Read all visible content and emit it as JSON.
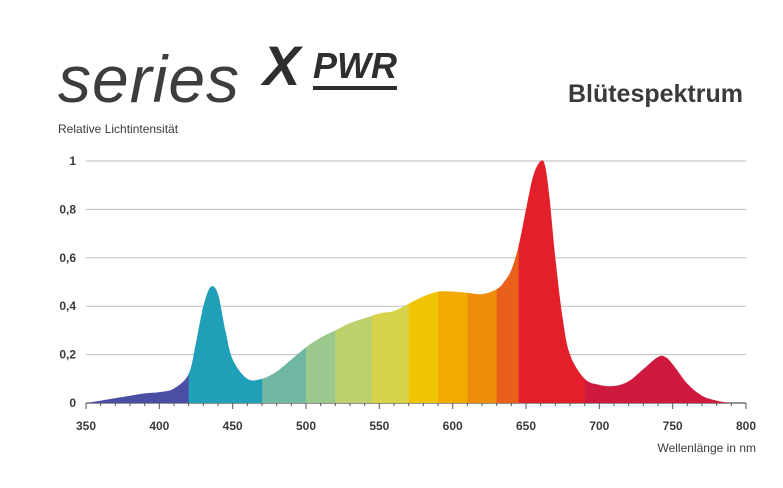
{
  "brand": {
    "series": "series",
    "x": "X",
    "pwr": "PWR"
  },
  "chart_data": {
    "type": "area",
    "title": "Blütespektrum",
    "xlabel": "Wellenlänge in nm",
    "ylabel": "Relative Lichtintensität",
    "xlim": [
      350,
      800
    ],
    "ylim": [
      0,
      1
    ],
    "grid": true,
    "x_ticks": [
      "350",
      "400",
      "450",
      "500",
      "550",
      "600",
      "650",
      "700",
      "750",
      "800"
    ],
    "y_ticks": [
      "0",
      "0,2",
      "0,4",
      "0,6",
      "0,8",
      "1"
    ],
    "x": [
      350,
      360,
      370,
      380,
      390,
      400,
      410,
      420,
      425,
      430,
      435,
      440,
      445,
      450,
      460,
      470,
      480,
      490,
      500,
      510,
      520,
      530,
      540,
      550,
      560,
      570,
      580,
      590,
      600,
      610,
      620,
      630,
      635,
      640,
      645,
      650,
      655,
      660,
      663,
      666,
      670,
      675,
      680,
      690,
      700,
      710,
      720,
      730,
      740,
      745,
      750,
      760,
      770,
      780,
      790,
      800
    ],
    "y": [
      0.0,
      0.01,
      0.02,
      0.03,
      0.04,
      0.045,
      0.06,
      0.12,
      0.25,
      0.4,
      0.48,
      0.45,
      0.3,
      0.18,
      0.1,
      0.1,
      0.13,
      0.18,
      0.23,
      0.27,
      0.3,
      0.33,
      0.35,
      0.37,
      0.38,
      0.41,
      0.44,
      0.46,
      0.46,
      0.455,
      0.45,
      0.47,
      0.5,
      0.55,
      0.65,
      0.8,
      0.94,
      1.0,
      0.98,
      0.85,
      0.6,
      0.35,
      0.2,
      0.1,
      0.075,
      0.07,
      0.09,
      0.14,
      0.19,
      0.19,
      0.16,
      0.08,
      0.03,
      0.01,
      0.0,
      0.0
    ],
    "color_bands": [
      {
        "from": 350,
        "to": 420,
        "color": "#4a4fa3"
      },
      {
        "from": 420,
        "to": 470,
        "color": "#1f9fb8"
      },
      {
        "from": 470,
        "to": 500,
        "color": "#6fb7a3"
      },
      {
        "from": 500,
        "to": 520,
        "color": "#9cc78d"
      },
      {
        "from": 520,
        "to": 545,
        "color": "#bcd16b"
      },
      {
        "from": 545,
        "to": 570,
        "color": "#d6d24a"
      },
      {
        "from": 570,
        "to": 590,
        "color": "#f0c400"
      },
      {
        "from": 590,
        "to": 610,
        "color": "#f2a900"
      },
      {
        "from": 610,
        "to": 630,
        "color": "#ef8e0a"
      },
      {
        "from": 630,
        "to": 645,
        "color": "#e95f1c"
      },
      {
        "from": 645,
        "to": 690,
        "color": "#e3202a"
      },
      {
        "from": 690,
        "to": 800,
        "color": "#cf1a40"
      }
    ]
  }
}
